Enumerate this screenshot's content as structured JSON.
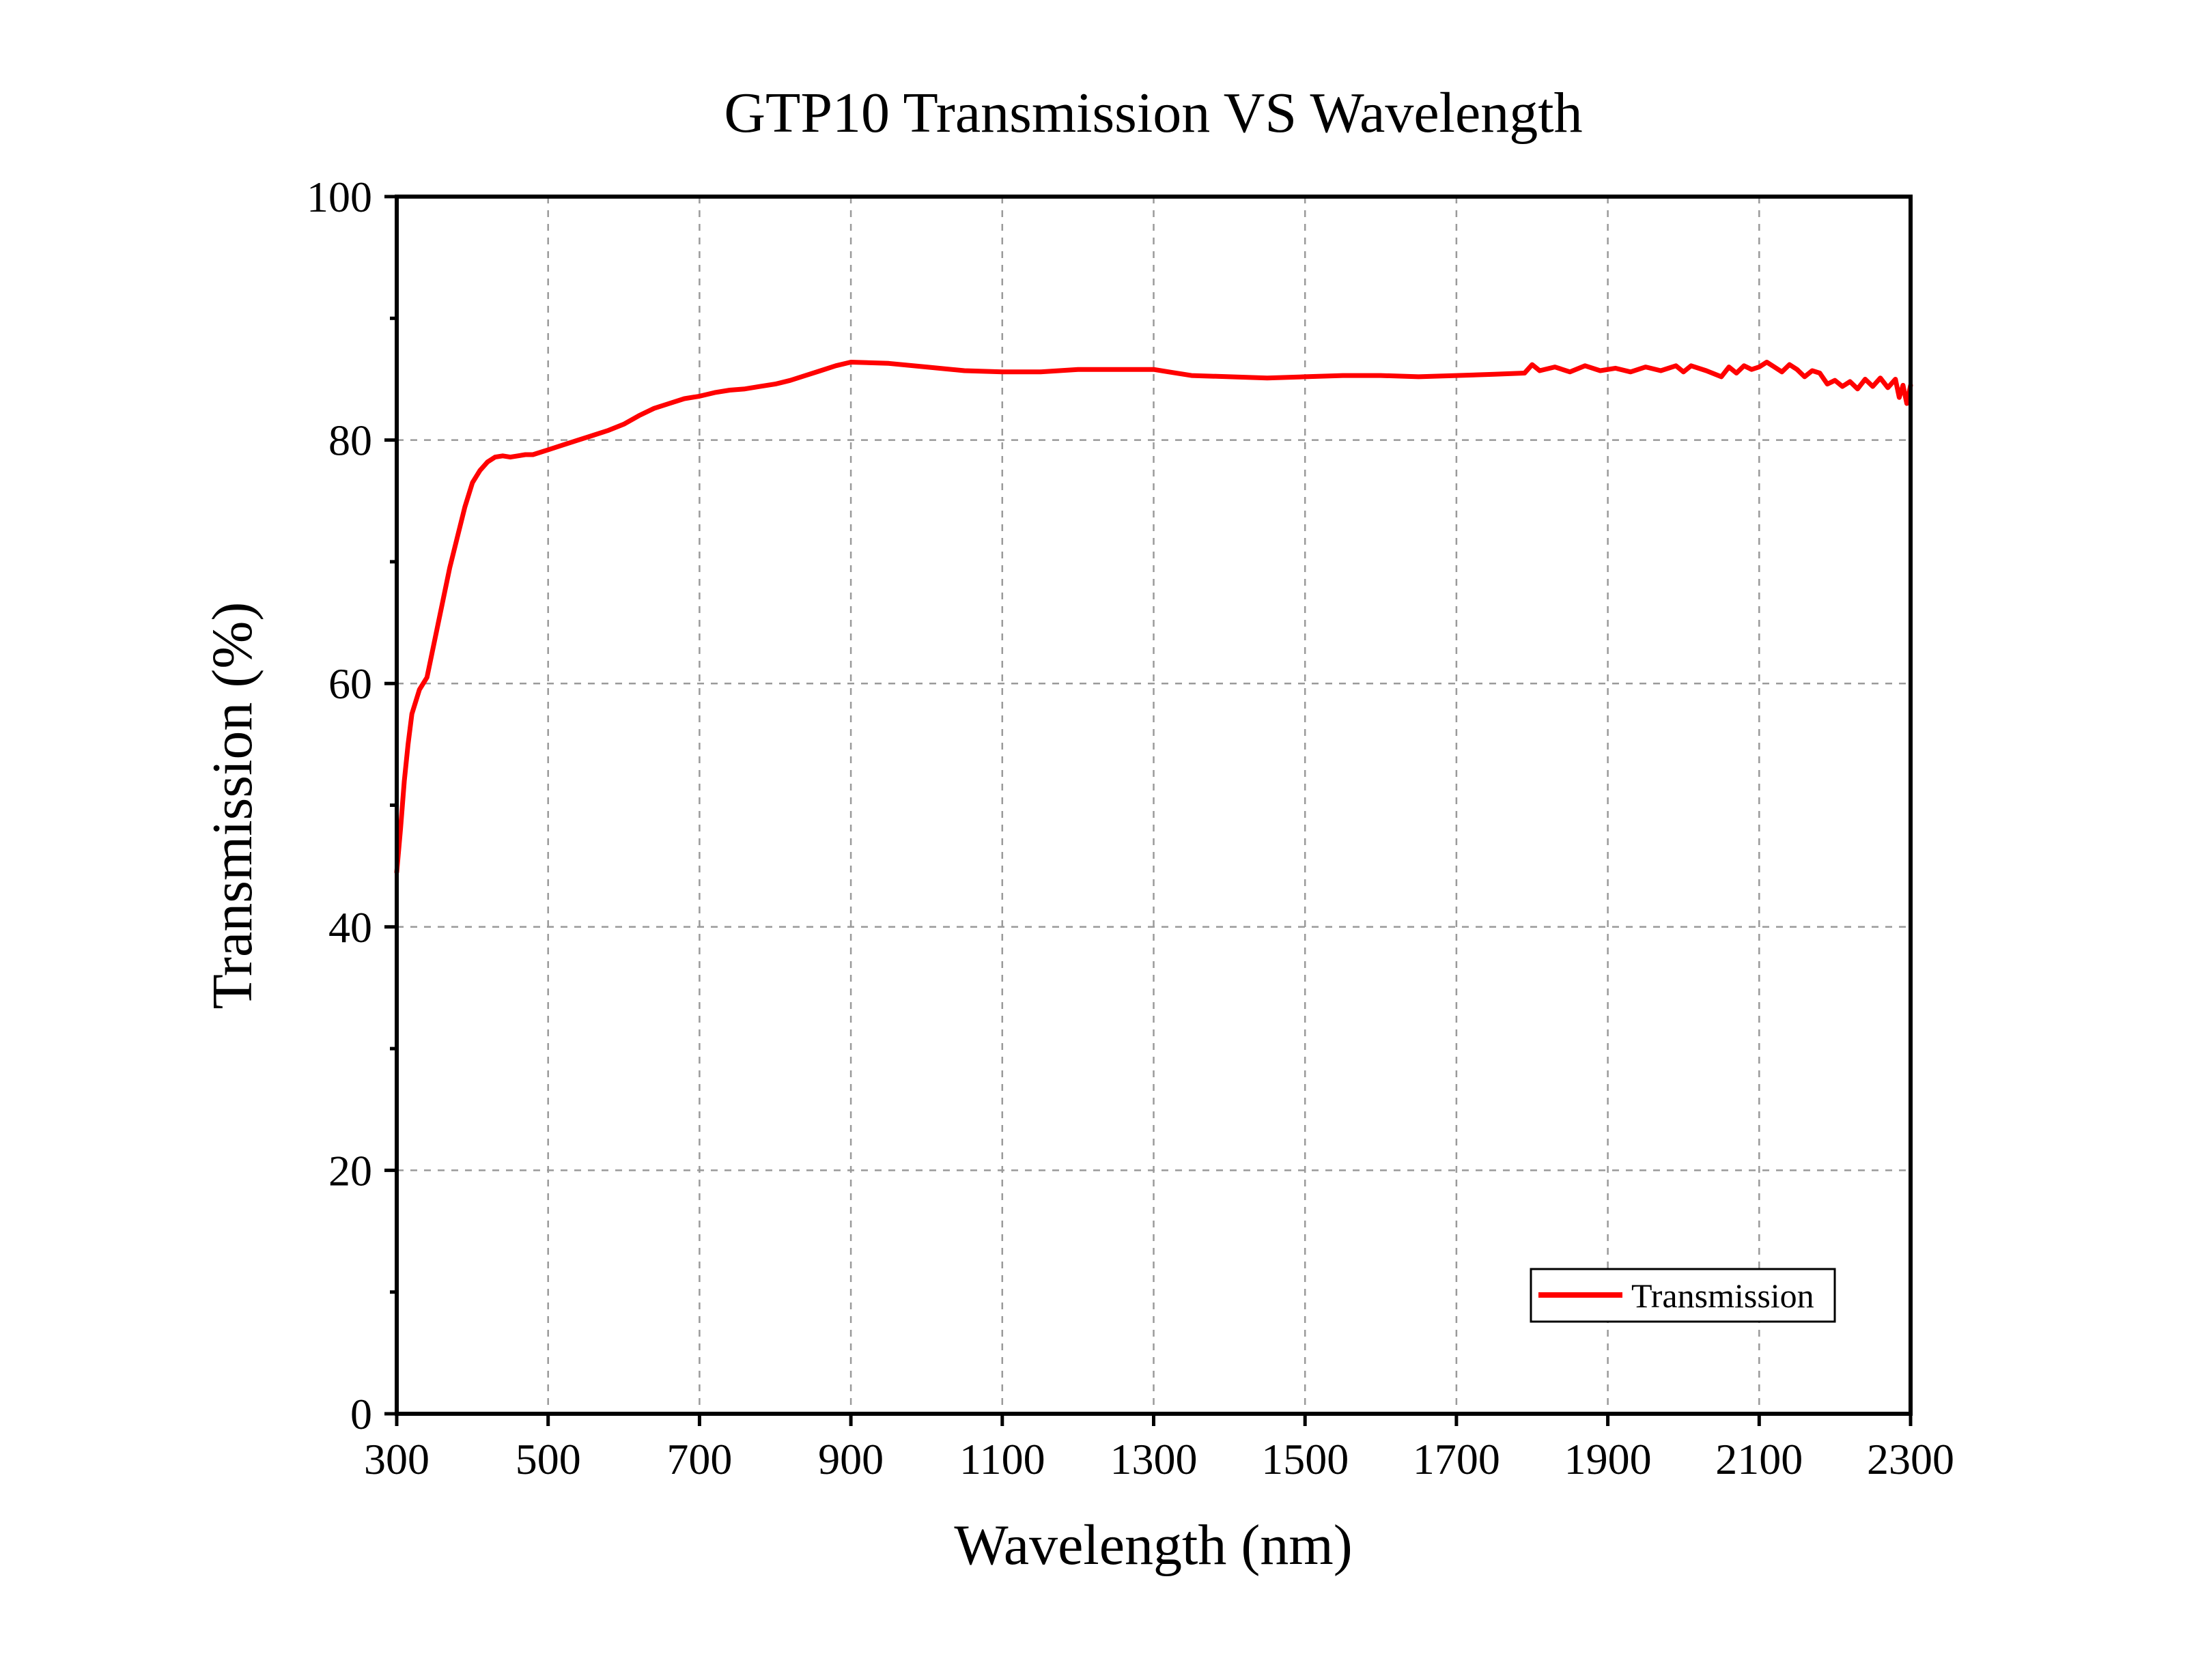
{
  "chart_data": {
    "type": "line",
    "title": "GTP10 Transmission VS Wavelength",
    "xlabel": "Wavelength (nm)",
    "ylabel": "Transmission (%)",
    "xlim": [
      300,
      2300
    ],
    "ylim": [
      0,
      100
    ],
    "xticks": [
      300,
      500,
      700,
      900,
      1100,
      1300,
      1500,
      1700,
      1900,
      2100,
      2300
    ],
    "yticks": [
      0,
      20,
      40,
      60,
      80,
      100
    ],
    "grid": true,
    "legend_position": "bottom-right",
    "series": [
      {
        "name": "Transmission",
        "color": "#ff0000",
        "x": [
          300,
          305,
          310,
          315,
          320,
          330,
          340,
          350,
          360,
          370,
          380,
          390,
          400,
          410,
          420,
          430,
          440,
          450,
          460,
          470,
          480,
          500,
          520,
          540,
          560,
          580,
          600,
          620,
          640,
          660,
          680,
          700,
          720,
          740,
          760,
          780,
          800,
          820,
          840,
          860,
          880,
          900,
          950,
          1000,
          1050,
          1100,
          1150,
          1200,
          1250,
          1300,
          1320,
          1350,
          1400,
          1450,
          1500,
          1550,
          1600,
          1650,
          1700,
          1750,
          1790,
          1800,
          1810,
          1830,
          1850,
          1870,
          1890,
          1910,
          1930,
          1950,
          1970,
          1990,
          2000,
          2010,
          2030,
          2050,
          2060,
          2070,
          2080,
          2090,
          2100,
          2110,
          2120,
          2130,
          2140,
          2150,
          2160,
          2170,
          2180,
          2190,
          2200,
          2210,
          2220,
          2230,
          2240,
          2250,
          2260,
          2270,
          2280,
          2285,
          2290,
          2295,
          2300
        ],
        "y": [
          44.5,
          48,
          52,
          55,
          57.5,
          59.5,
          60.5,
          63.5,
          66.5,
          69.5,
          72.0,
          74.5,
          76.5,
          77.5,
          78.2,
          78.6,
          78.7,
          78.6,
          78.7,
          78.8,
          78.8,
          79.2,
          79.6,
          80.0,
          80.4,
          80.8,
          81.3,
          82.0,
          82.6,
          83.0,
          83.4,
          83.6,
          83.9,
          84.1,
          84.2,
          84.4,
          84.6,
          84.9,
          85.3,
          85.7,
          86.1,
          86.4,
          86.3,
          86.0,
          85.7,
          85.6,
          85.6,
          85.8,
          85.8,
          85.8,
          85.6,
          85.3,
          85.2,
          85.1,
          85.2,
          85.3,
          85.3,
          85.2,
          85.3,
          85.4,
          85.5,
          86.2,
          85.7,
          86.0,
          85.6,
          86.1,
          85.7,
          85.9,
          85.6,
          86.0,
          85.7,
          86.1,
          85.6,
          86.1,
          85.7,
          85.2,
          86.0,
          85.5,
          86.1,
          85.8,
          86.0,
          86.4,
          86.0,
          85.6,
          86.2,
          85.8,
          85.2,
          85.7,
          85.5,
          84.6,
          84.9,
          84.4,
          84.8,
          84.2,
          85.0,
          84.4,
          85.1,
          84.3,
          85.0,
          83.5,
          84.5,
          83.0,
          84.5
        ]
      }
    ]
  }
}
